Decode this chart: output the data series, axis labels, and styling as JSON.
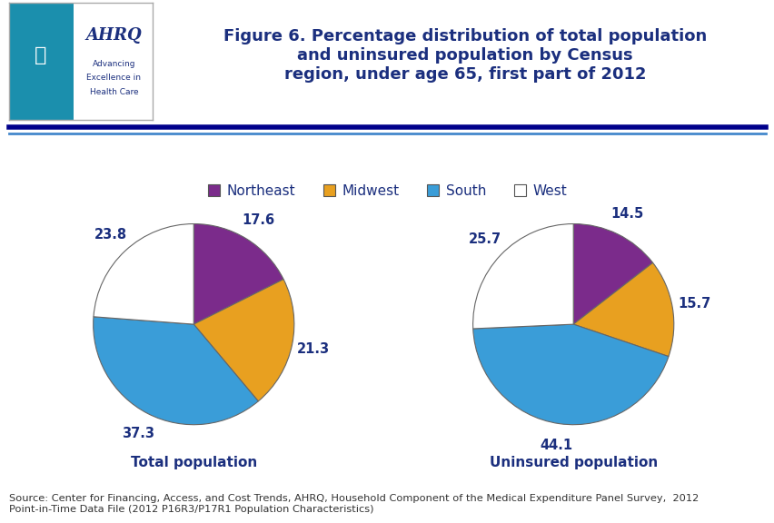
{
  "title": "Figure 6. Percentage distribution of total population\nand uninsured population by Census\nregion, under age 65, first part of 2012",
  "title_color": "#1B2F7E",
  "title_fontsize": 13.0,
  "pie1_values": [
    17.6,
    21.3,
    37.3,
    23.8
  ],
  "pie2_values": [
    14.5,
    15.7,
    44.1,
    25.7
  ],
  "pie_colors": [
    "#7B2B8B",
    "#E8A020",
    "#3A9DD8",
    "#FFFFFF"
  ],
  "pie_edgecolor": "#555555",
  "regions": [
    "Northeast",
    "Midwest",
    "South",
    "West"
  ],
  "pie1_label": "Total population",
  "pie2_label": "Uninsured population",
  "label_color": "#1B2F7E",
  "label_fontsize": 11,
  "legend_fontsize": 11,
  "source_text": "Source: Center for Financing, Access, and Cost Trends, AHRQ, Household Component of the Medical Expenditure Panel Survey,  2012\nPoint-in-Time Data File (2012 P16R3/P17R1 Population Characteristics)",
  "source_fontsize": 8.2,
  "header_line_color1": "#00008B",
  "header_line_color2": "#4488CC",
  "bg_color": "#FFFFFF",
  "pie1_startangle": 90,
  "pie2_startangle": 90,
  "pie1_labels": [
    "17.6",
    "21.3",
    "37.3",
    "23.8"
  ],
  "pie2_labels": [
    "14.5",
    "15.7",
    "44.1",
    "25.7"
  ]
}
